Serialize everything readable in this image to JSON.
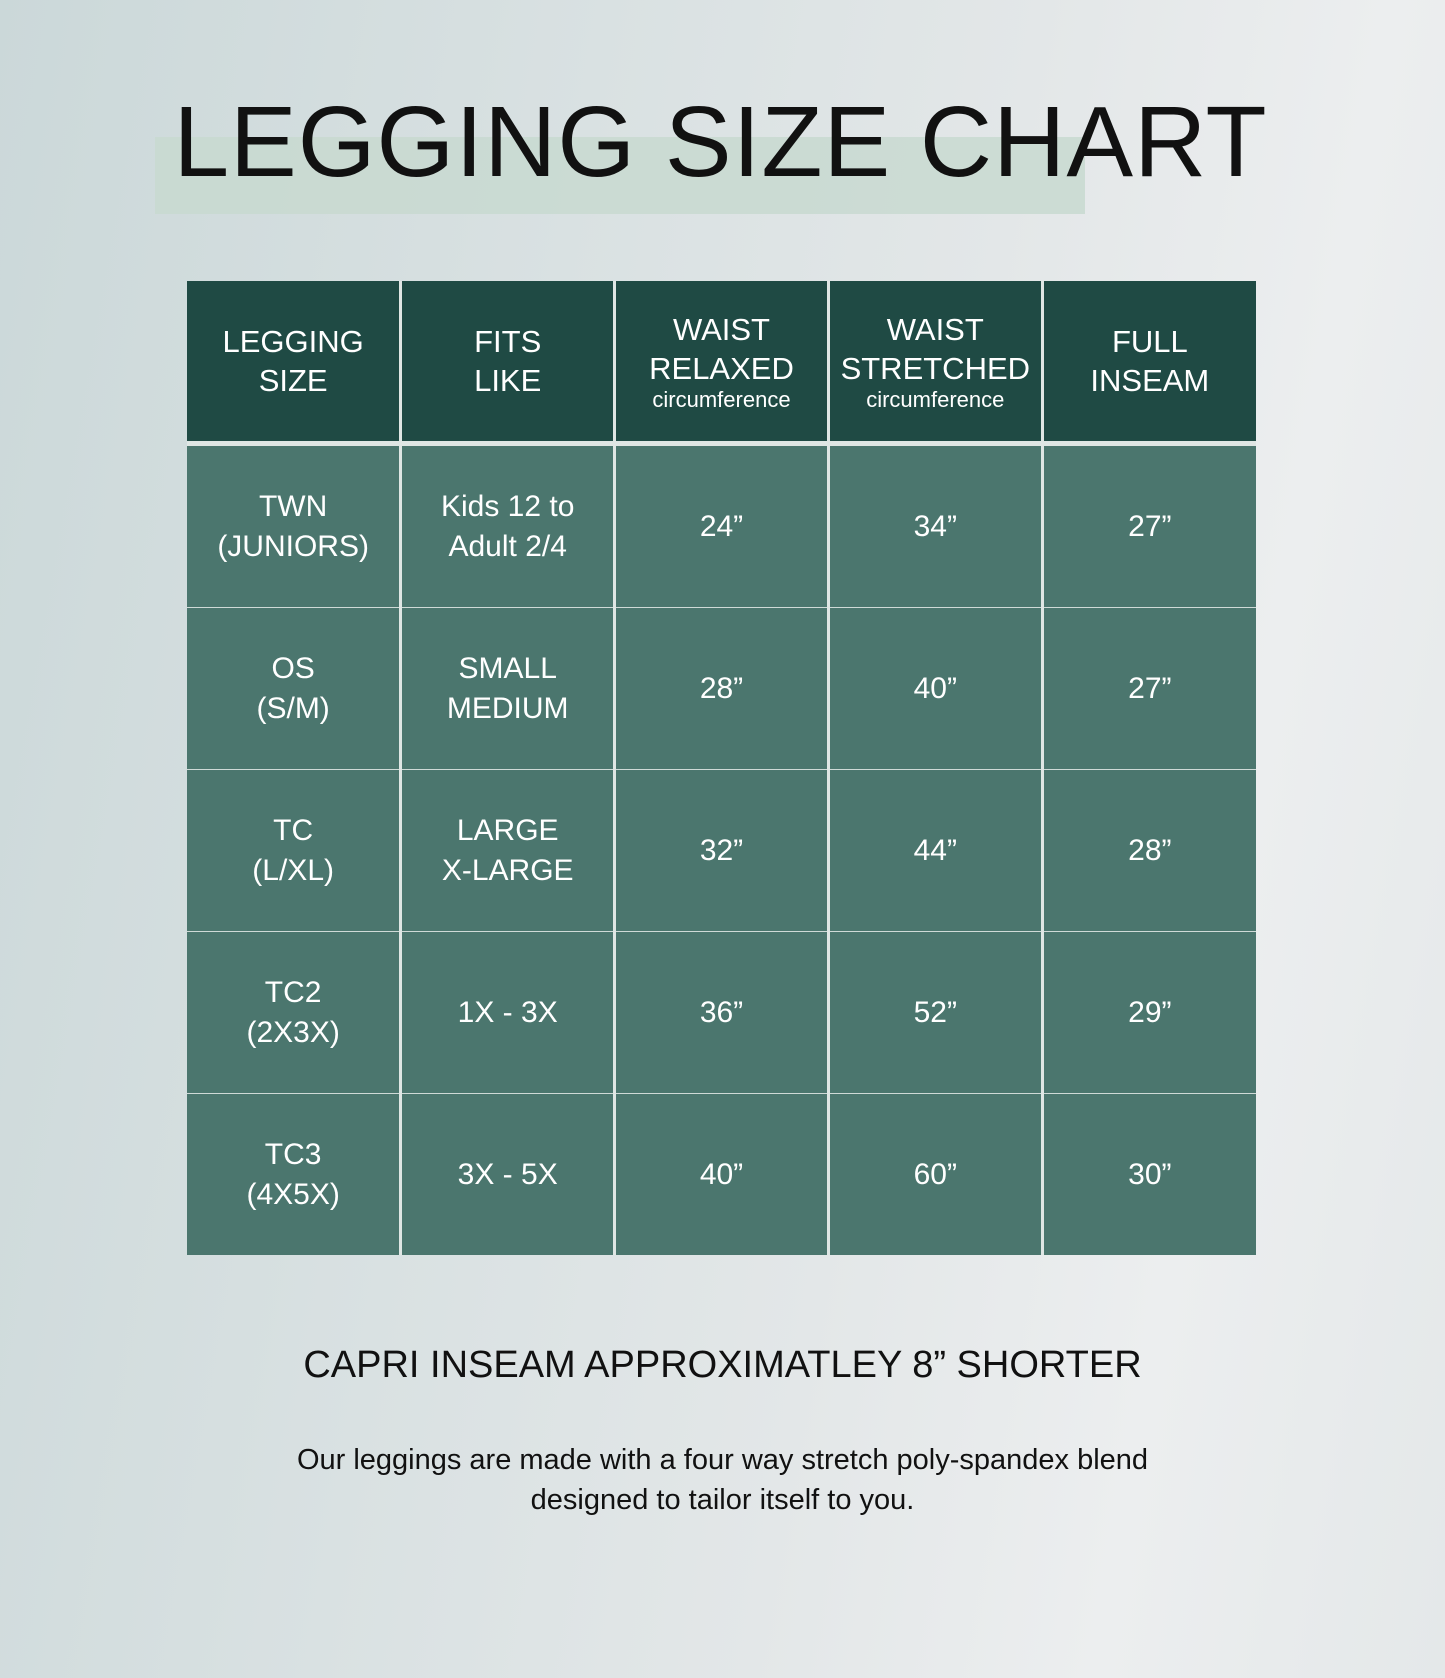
{
  "title": "LEGGING SIZE CHART",
  "table": {
    "headers": [
      {
        "line1": "LEGGING",
        "line2": "SIZE",
        "sub": ""
      },
      {
        "line1": "FITS",
        "line2": "LIKE",
        "sub": ""
      },
      {
        "line1": "WAIST",
        "line2": "RELAXED",
        "sub": "circumference"
      },
      {
        "line1": "WAIST",
        "line2": "STRETCHED",
        "sub": "circumference"
      },
      {
        "line1": "FULL",
        "line2": "INSEAM",
        "sub": ""
      }
    ],
    "rows": [
      {
        "size": [
          "TWN",
          "(JUNIORS)"
        ],
        "fits": [
          "Kids 12 to",
          "Adult 2/4"
        ],
        "relaxed": "24”",
        "stretched": "34”",
        "inseam": "27”"
      },
      {
        "size": [
          "OS",
          "(S/M)"
        ],
        "fits": [
          "SMALL",
          "MEDIUM"
        ],
        "relaxed": "28”",
        "stretched": "40”",
        "inseam": "27”"
      },
      {
        "size": [
          "TC",
          "(L/XL)"
        ],
        "fits": [
          "LARGE",
          "X-LARGE"
        ],
        "relaxed": "32”",
        "stretched": "44”",
        "inseam": "28”"
      },
      {
        "size": [
          "TC2",
          "(2X3X)"
        ],
        "fits": [
          "1X - 3X",
          ""
        ],
        "relaxed": "36”",
        "stretched": "52”",
        "inseam": "29”"
      },
      {
        "size": [
          "TC3",
          "(4X5X)"
        ],
        "fits": [
          "3X - 5X",
          ""
        ],
        "relaxed": "40”",
        "stretched": "60”",
        "inseam": "30”"
      }
    ]
  },
  "capri_note": "CAPRI INSEAM APPROXIMATLEY 8” SHORTER",
  "description": {
    "line1": "Our leggings are made with a four way stretch poly-spandex blend",
    "line2": "designed to tailor itself to you."
  },
  "colors": {
    "header": "#1f4a44",
    "cell": "#4b766e",
    "highlight": "#c8d9d0"
  }
}
